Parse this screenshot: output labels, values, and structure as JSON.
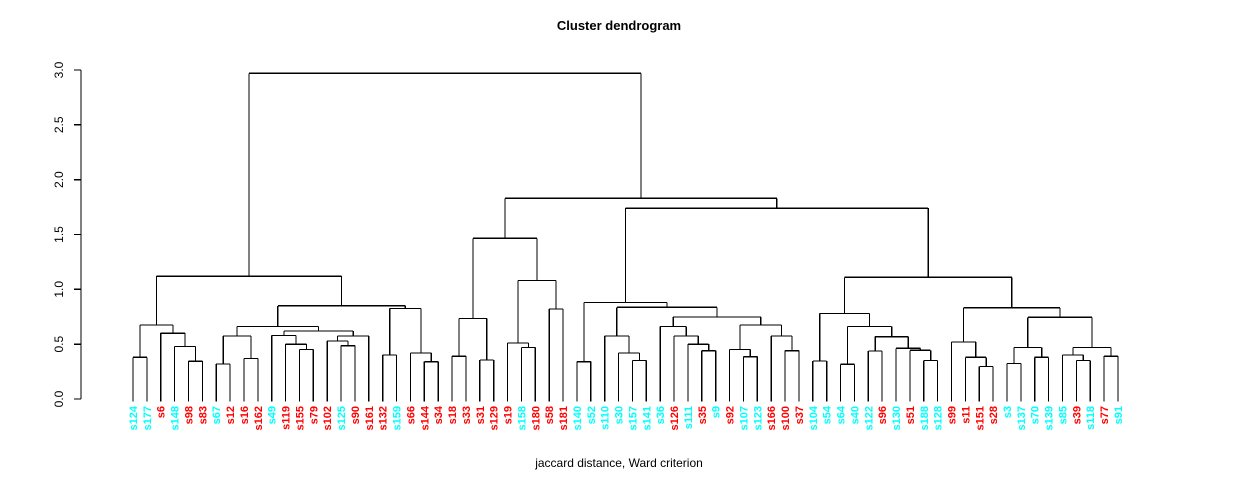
{
  "header": {
    "title": "Cluster dendrogram"
  },
  "footer": {
    "caption": "jaccard distance, Ward criterion"
  },
  "chart_data": {
    "type": "dendrogram",
    "title": "Cluster dendrogram",
    "xlabel": "jaccard distance, Ward criterion",
    "ylabel": "",
    "ylim": [
      0.0,
      3.0
    ],
    "y_ticks": [
      "0.0",
      "0.5",
      "1.0",
      "1.5",
      "2.0",
      "2.5",
      "3.0"
    ],
    "grid": false,
    "legend": "none",
    "branch_color": "#000000",
    "group_colors": {
      "cyan": "#00ffff",
      "red": "#ff0000"
    },
    "leaf_groups": {
      "s124": "cyan",
      "s177": "cyan",
      "s6": "red",
      "s148": "cyan",
      "s98": "red",
      "s83": "red",
      "s67": "cyan",
      "s12": "red",
      "s16": "red",
      "s162": "red",
      "s49": "cyan",
      "s119": "red",
      "s155": "red",
      "s79": "red",
      "s102": "red",
      "s125": "cyan",
      "s90": "red",
      "s161": "red",
      "s132": "red",
      "s159": "cyan",
      "s66": "red",
      "s144": "red",
      "s34": "red",
      "s18": "red",
      "s33": "red",
      "s31": "red",
      "s129": "red",
      "s19": "red",
      "s158": "cyan",
      "s180": "red",
      "s58": "red",
      "s181": "red",
      "s140": "cyan",
      "s52": "cyan",
      "s110": "cyan",
      "s30": "cyan",
      "s157": "cyan",
      "s141": "cyan",
      "s36": "cyan",
      "s126": "red",
      "s111": "cyan",
      "s35": "red",
      "s9": "cyan",
      "s92": "red",
      "s107": "cyan",
      "s123": "cyan",
      "s166": "red",
      "s100": "red",
      "s37": "red",
      "s104": "cyan",
      "s54": "cyan",
      "s64": "cyan",
      "s40": "cyan",
      "s122": "cyan",
      "s96": "red",
      "s130": "cyan",
      "s51": "red",
      "s188": "cyan",
      "s128": "cyan",
      "s99": "red",
      "s11": "red",
      "s151": "red",
      "s28": "red",
      "s3": "cyan",
      "s137": "cyan",
      "s70": "cyan",
      "s139": "cyan",
      "s85": "cyan",
      "s39": "red",
      "s118": "cyan",
      "s77": "red",
      "s91": "cyan"
    },
    "tree": {
      "h": 2.97,
      "c": [
        {
          "h": 1.12,
          "c": [
            {
              "h": 0.675,
              "c": [
                {
                  "h": 0.38,
                  "c": [
                    "s124",
                    "s177"
                  ]
                },
                {
                  "h": 0.6,
                  "c": [
                    "s6",
                    {
                      "h": 0.48,
                      "c": [
                        "s148",
                        {
                          "h": 0.345,
                          "c": [
                            "s98",
                            "s83"
                          ]
                        }
                      ]
                    }
                  ]
                }
              ]
            },
            {
              "h": 0.85,
              "c": [
                {
                  "h": 0.66,
                  "c": [
                    {
                      "h": 0.575,
                      "c": [
                        {
                          "h": 0.32,
                          "c": [
                            "s67",
                            "s12"
                          ]
                        },
                        {
                          "h": 0.37,
                          "c": [
                            "s16",
                            "s162"
                          ]
                        }
                      ]
                    },
                    {
                      "h": 0.62,
                      "c": [
                        {
                          "h": 0.58,
                          "c": [
                            "s49",
                            {
                              "h": 0.5,
                              "c": [
                                "s119",
                                {
                                  "h": 0.45,
                                  "c": [
                                    "s155",
                                    "s79"
                                  ]
                                }
                              ]
                            }
                          ]
                        },
                        {
                          "h": 0.575,
                          "c": [
                            {
                              "h": 0.53,
                              "c": [
                                "s102",
                                {
                                  "h": 0.486,
                                  "c": [
                                    "s125",
                                    "s90"
                                  ]
                                }
                              ]
                            },
                            "s161"
                          ]
                        }
                      ]
                    }
                  ]
                },
                {
                  "h": 0.825,
                  "c": [
                    {
                      "h": 0.4,
                      "c": [
                        "s132",
                        "s159"
                      ]
                    },
                    {
                      "h": 0.42,
                      "c": [
                        "s66",
                        {
                          "h": 0.34,
                          "c": [
                            "s144",
                            "s34"
                          ]
                        }
                      ]
                    }
                  ]
                }
              ]
            }
          ]
        },
        {
          "h": 1.83,
          "c": [
            {
              "h": 1.465,
              "c": [
                {
                  "h": 0.735,
                  "c": [
                    {
                      "h": 0.39,
                      "c": [
                        "s18",
                        "s33"
                      ]
                    },
                    {
                      "h": 0.355,
                      "c": [
                        "s31",
                        "s129"
                      ]
                    }
                  ]
                },
                {
                  "h": 1.08,
                  "c": [
                    {
                      "h": 0.51,
                      "c": [
                        "s19",
                        {
                          "h": 0.47,
                          "c": [
                            "s158",
                            "s180"
                          ]
                        }
                      ]
                    },
                    {
                      "h": 0.82,
                      "c": [
                        "s58",
                        "s181"
                      ]
                    }
                  ]
                }
              ]
            },
            {
              "h": 1.74,
              "c": [
                {
                  "h": 0.88,
                  "c": [
                    {
                      "h": 0.34,
                      "c": [
                        "s140",
                        "s52"
                      ]
                    },
                    {
                      "h": 0.836,
                      "c": [
                        {
                          "h": 0.574,
                          "c": [
                            "s110",
                            {
                              "h": 0.42,
                              "c": [
                                "s30",
                                {
                                  "h": 0.35,
                                  "c": [
                                    "s157",
                                    "s141"
                                  ]
                                }
                              ]
                            }
                          ]
                        },
                        {
                          "h": 0.747,
                          "c": [
                            {
                              "h": 0.66,
                              "c": [
                                "s36",
                                {
                                  "h": 0.575,
                                  "c": [
                                    "s126",
                                    {
                                      "h": 0.5,
                                      "c": [
                                        "s111",
                                        {
                                          "h": 0.44,
                                          "c": [
                                            "s35",
                                            "s9"
                                          ]
                                        }
                                      ]
                                    }
                                  ]
                                }
                              ]
                            },
                            {
                              "h": 0.675,
                              "c": [
                                {
                                  "h": 0.45,
                                  "c": [
                                    "s92",
                                    {
                                      "h": 0.386,
                                      "c": [
                                        "s107",
                                        "s123"
                                      ]
                                    }
                                  ]
                                },
                                {
                                  "h": 0.574,
                                  "c": [
                                    "s166",
                                    {
                                      "h": 0.44,
                                      "c": [
                                        "s100",
                                        "s37"
                                      ]
                                    }
                                  ]
                                }
                              ]
                            }
                          ]
                        }
                      ]
                    }
                  ]
                },
                {
                  "h": 1.11,
                  "c": [
                    {
                      "h": 0.78,
                      "c": [
                        {
                          "h": 0.346,
                          "c": [
                            "s104",
                            "s54"
                          ]
                        },
                        {
                          "h": 0.66,
                          "c": [
                            {
                              "h": 0.316,
                              "c": [
                                "s64",
                                "s40"
                              ]
                            },
                            {
                              "h": 0.568,
                              "c": [
                                {
                                  "h": 0.437,
                                  "c": [
                                    "s122",
                                    "s96"
                                  ]
                                },
                                {
                                  "h": 0.462,
                                  "c": [
                                    "s130",
                                    {
                                      "h": 0.444,
                                      "c": [
                                        "s51",
                                        {
                                          "h": 0.35,
                                          "c": [
                                            "s188",
                                            "s128"
                                          ]
                                        }
                                      ]
                                    }
                                  ]
                                }
                              ]
                            }
                          ]
                        }
                      ]
                    },
                    {
                      "h": 0.832,
                      "c": [
                        {
                          "h": 0.52,
                          "c": [
                            "s99",
                            {
                              "h": 0.38,
                              "c": [
                                "s11",
                                {
                                  "h": 0.295,
                                  "c": [
                                    "s151",
                                    "s28"
                                  ]
                                }
                              ]
                            }
                          ]
                        },
                        {
                          "h": 0.745,
                          "c": [
                            {
                              "h": 0.47,
                              "c": [
                                {
                                  "h": 0.325,
                                  "c": [
                                    "s3",
                                    "s137"
                                  ]
                                },
                                {
                                  "h": 0.38,
                                  "c": [
                                    "s70",
                                    "s139"
                                  ]
                                }
                              ]
                            },
                            {
                              "h": 0.47,
                              "c": [
                                {
                                  "h": 0.4,
                                  "c": [
                                    "s85",
                                    {
                                      "h": 0.35,
                                      "c": [
                                        "s39",
                                        "s118"
                                      ]
                                    }
                                  ]
                                },
                                {
                                  "h": 0.39,
                                  "c": [
                                    "s77",
                                    "s91"
                                  ]
                                }
                              ]
                            }
                          ]
                        }
                      ]
                    }
                  ]
                }
              ]
            }
          ]
        }
      ]
    }
  }
}
